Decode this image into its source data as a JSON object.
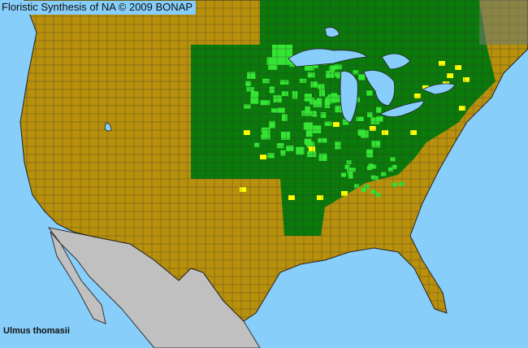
{
  "header": {
    "title": "Floristic Synthesis of NA © 2009 BONAP"
  },
  "map": {
    "species": "Ulmus thomasii",
    "colors": {
      "water": "#87cefa",
      "absent_state": "#b8900b",
      "present_state": "#0a7a0a",
      "present_county": "#33e633",
      "rare_county": "#ffff00",
      "outside_area": "#c0c0c0",
      "borders": "#333333"
    }
  }
}
